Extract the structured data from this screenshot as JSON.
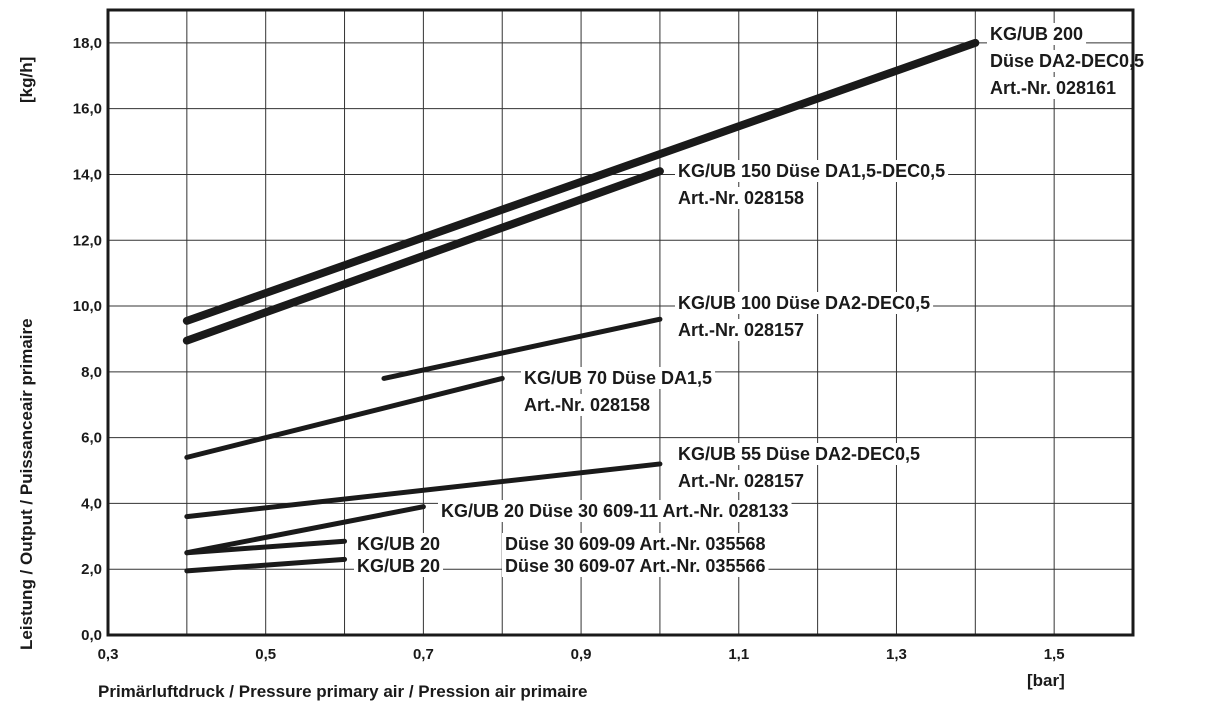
{
  "chart_data": {
    "type": "line",
    "xlabel": "Primärluftdruck / Pressure primary air / Pression air primaire",
    "xunit": "[bar]",
    "ylabel": "Leistung / Output / Puissanceair primaire",
    "yunit": "[kg/h]",
    "xlim": [
      0.3,
      1.6
    ],
    "ylim": [
      0.0,
      19.0
    ],
    "x_ticks": [
      0.3,
      0.4,
      0.5,
      0.6,
      0.7,
      0.8,
      0.9,
      1.0,
      1.1,
      1.2,
      1.3,
      1.4,
      1.5
    ],
    "x_tick_labels": [
      "0,3",
      "",
      "0,5",
      "",
      "0,7",
      "",
      "0,9",
      "",
      "1,1",
      "",
      "1,3",
      "",
      "1,5"
    ],
    "y_ticks": [
      0,
      2,
      4,
      6,
      8,
      10,
      12,
      14,
      16,
      18
    ],
    "y_tick_labels": [
      "0,0",
      "2,0",
      "4,0",
      "6,0",
      "8,0",
      "10,0",
      "12,0",
      "14,0",
      "16,0",
      "18,0"
    ],
    "grid": true,
    "series": [
      {
        "name": "KG/UB 200",
        "x": [
          0.4,
          1.4
        ],
        "y": [
          9.55,
          18.0
        ],
        "weight": "heavy"
      },
      {
        "name": "KG/UB 150",
        "x": [
          0.4,
          1.0
        ],
        "y": [
          8.95,
          14.1
        ],
        "weight": "heavy"
      },
      {
        "name": "KG/UB 100",
        "x": [
          0.65,
          1.0
        ],
        "y": [
          7.8,
          9.6
        ],
        "weight": "light"
      },
      {
        "name": "KG/UB 70",
        "x": [
          0.4,
          0.8
        ],
        "y": [
          5.4,
          7.8
        ],
        "weight": "light"
      },
      {
        "name": "KG/UB 55",
        "x": [
          0.4,
          1.0
        ],
        "y": [
          3.6,
          5.2
        ],
        "weight": "light"
      },
      {
        "name": "KG/UB 20",
        "x": [
          0.4,
          0.7
        ],
        "y": [
          2.5,
          3.9
        ],
        "weight": "light"
      },
      {
        "name": "KG/UB 20",
        "x": [
          0.4,
          0.6
        ],
        "y": [
          2.5,
          2.85
        ],
        "weight": "light"
      },
      {
        "name": "KG/UB 20",
        "x": [
          0.4,
          0.6
        ],
        "y": [
          1.95,
          2.3
        ],
        "weight": "light"
      }
    ],
    "annotations": [
      {
        "lines": [
          "KG/UB 200",
          "Düse DA2-DEC0,5",
          "Art.-Nr. 028161"
        ]
      },
      {
        "lines": [
          "KG/UB 150  Düse DA1,5-DEC0,5",
          "Art.-Nr. 028158"
        ]
      },
      {
        "lines": [
          "KG/UB 100  Düse DA2-DEC0,5",
          "Art.-Nr. 028157"
        ]
      },
      {
        "lines": [
          "KG/UB 70  Düse DA1,5",
          "Art.-Nr. 028158"
        ]
      },
      {
        "lines": [
          "KG/UB 55  Düse DA2-DEC0,5",
          "Art.-Nr. 028157"
        ]
      },
      {
        "lines": [
          "KG/UB 20   Düse 30 609-11 Art.-Nr. 028133"
        ]
      },
      {
        "lines": [
          "KG/UB 20",
          "Düse 30 609-09 Art.-Nr. 035568"
        ]
      },
      {
        "lines": [
          "KG/UB 20",
          "Düse 30 609-07 Art.-Nr. 035566"
        ]
      }
    ]
  }
}
